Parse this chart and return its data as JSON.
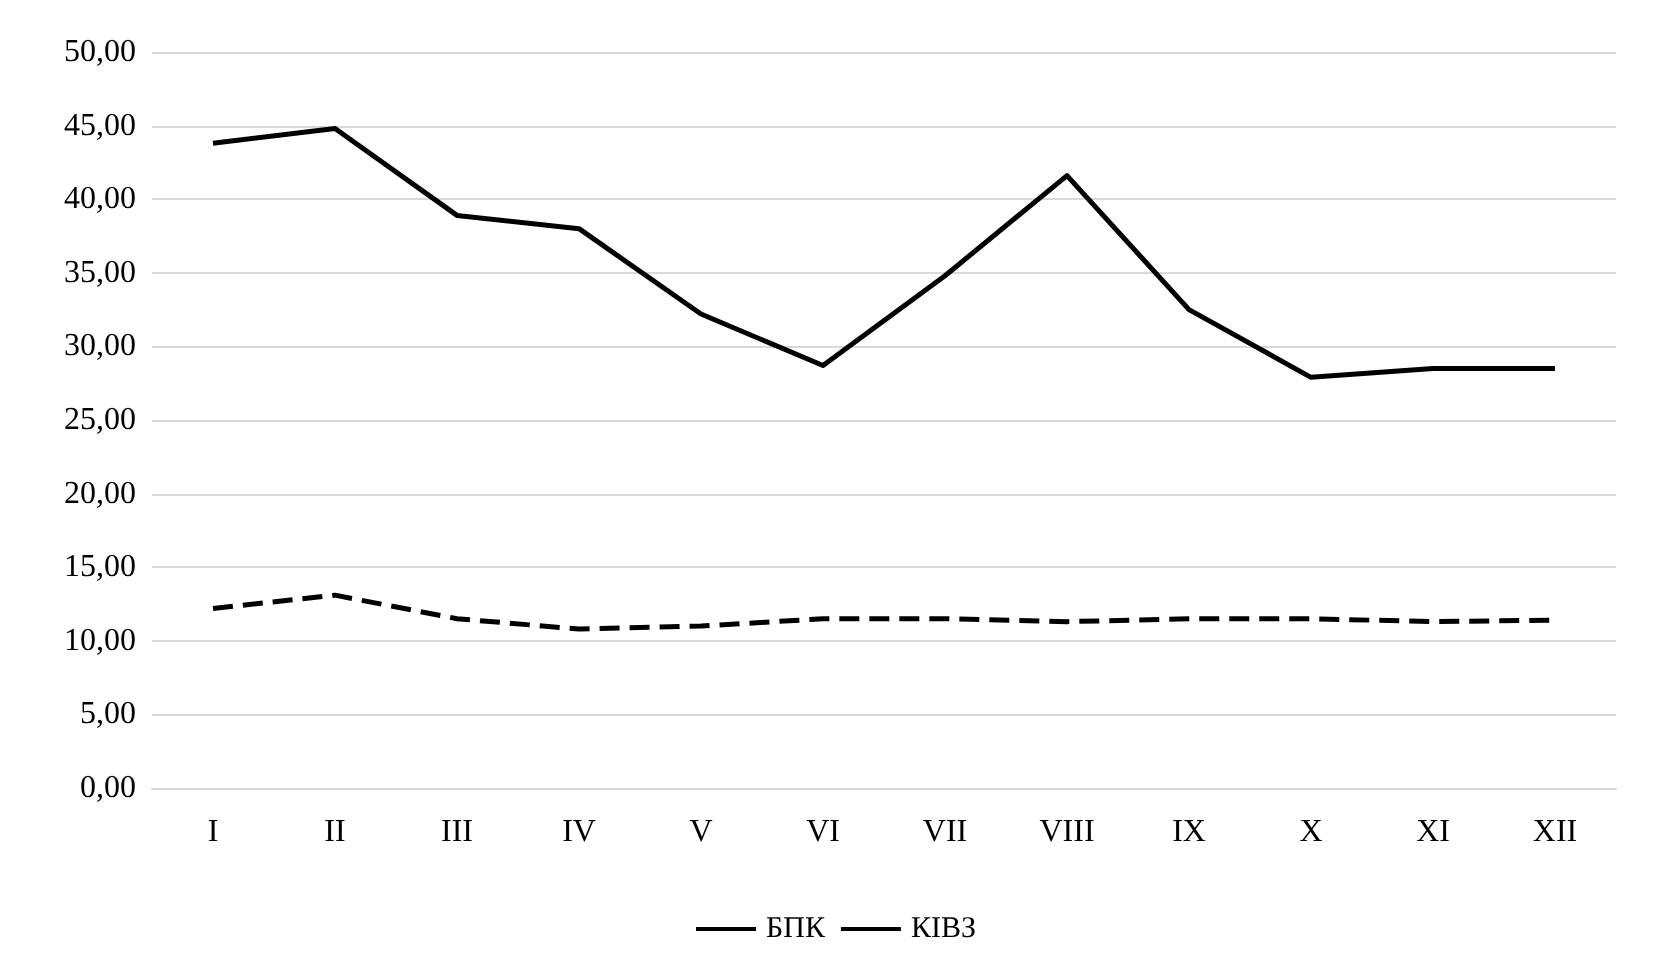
{
  "chart_data": {
    "type": "line",
    "categories": [
      "I",
      "II",
      "III",
      "IV",
      "V",
      "VI",
      "VII",
      "VIII",
      "IX",
      "X",
      "XI",
      "XII"
    ],
    "series": [
      {
        "name": "БПК",
        "color": "#000000",
        "line_style": "dashed",
        "values": [
          12.2,
          13.1,
          11.5,
          10.8,
          11.0,
          11.5,
          11.5,
          11.3,
          11.5,
          11.5,
          11.3,
          11.4
        ]
      },
      {
        "name": "КІВЗ",
        "color": "#000000",
        "line_style": "solid",
        "values": [
          43.8,
          44.8,
          38.9,
          38.0,
          32.2,
          28.7,
          34.8,
          41.6,
          32.5,
          27.9,
          28.5,
          28.5
        ]
      }
    ],
    "ylim": [
      0,
      50
    ],
    "yticks": [
      {
        "value": 0,
        "label": "0,00"
      },
      {
        "value": 5,
        "label": "5,00"
      },
      {
        "value": 10,
        "label": "10,00"
      },
      {
        "value": 15,
        "label": "15,00"
      },
      {
        "value": 20,
        "label": "20,00"
      },
      {
        "value": 25,
        "label": "25,00"
      },
      {
        "value": 30,
        "label": "30,00"
      },
      {
        "value": 35,
        "label": "35,00"
      },
      {
        "value": 40,
        "label": "40,00"
      },
      {
        "value": 45,
        "label": "45,00"
      },
      {
        "value": 50,
        "label": "50,00"
      }
    ],
    "grid": "y",
    "legend": "bottom",
    "marker": "none"
  }
}
